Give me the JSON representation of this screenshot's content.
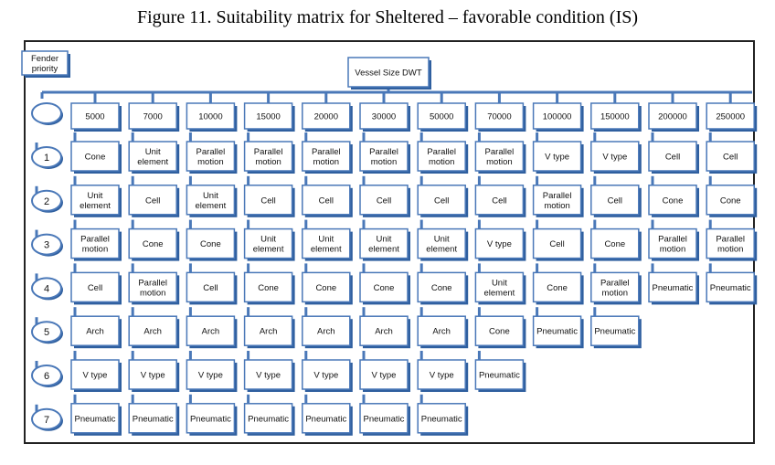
{
  "title": "Figure 11. Suitability matrix for Sheltered – favorable condition (IS)",
  "row_header_label": "Fender priority",
  "column_header_label": "Vessel Size DWT",
  "corner_label": "",
  "colors": {
    "box_fill": "#ffffff",
    "box_border": "#4a78b8",
    "box_shadow": "#2f5f9f",
    "line": "#4a78b8"
  },
  "vessel_sizes": [
    "5000",
    "7000",
    "10000",
    "15000",
    "20000",
    "30000",
    "50000",
    "70000",
    "100000",
    "150000",
    "200000",
    "250000"
  ],
  "priorities": [
    "1",
    "2",
    "3",
    "4",
    "5",
    "6",
    "7"
  ],
  "matrix": [
    [
      "Cone",
      "Unit element",
      "Parallel motion",
      "Parallel motion",
      "Parallel motion",
      "Parallel motion",
      "Parallel motion",
      "Parallel motion",
      "V type",
      "V type",
      "Cell",
      "Cell"
    ],
    [
      "Unit element",
      "Cell",
      "Unit element",
      "Cell",
      "Cell",
      "Cell",
      "Cell",
      "Cell",
      "Parallel motion",
      "Cell",
      "Cone",
      "Cone"
    ],
    [
      "Parallel motion",
      "Cone",
      "Cone",
      "Unit element",
      "Unit element",
      "Unit element",
      "Unit element",
      "V type",
      "Cell",
      "Cone",
      "Parallel motion",
      "Parallel motion"
    ],
    [
      "Cell",
      "Parallel motion",
      "Cell",
      "Cone",
      "Cone",
      "Cone",
      "Cone",
      "Unit element",
      "Cone",
      "Parallel motion",
      "Pneumatic",
      "Pneumatic"
    ],
    [
      "Arch",
      "Arch",
      "Arch",
      "Arch",
      "Arch",
      "Arch",
      "Arch",
      "Cone",
      "Pneumatic",
      "Pneumatic",
      "",
      ""
    ],
    [
      "V type",
      "V type",
      "V type",
      "V type",
      "V type",
      "V type",
      "V type",
      "Pneumatic",
      "",
      "",
      "",
      ""
    ],
    [
      "Pneumatic",
      "Pneumatic",
      "Pneumatic",
      "Pneumatic",
      "Pneumatic",
      "Pneumatic",
      "Pneumatic",
      "",
      "",
      "",
      "",
      ""
    ]
  ]
}
